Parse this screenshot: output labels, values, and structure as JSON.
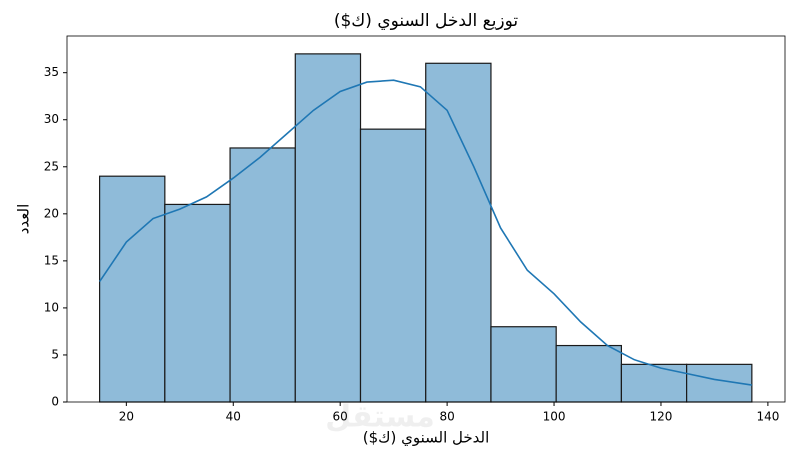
{
  "chart_data": {
    "type": "histogram",
    "title": "توزيع الدخل السنوي (ك$)",
    "x_label": "الدخل السنوي (ك$)",
    "y_label": "العدد",
    "watermark": "مستقل",
    "bins": [
      15,
      27.2,
      39.4,
      51.6,
      63.8,
      76,
      88.2,
      100.4,
      112.6,
      124.8,
      137
    ],
    "values": [
      24,
      21,
      27,
      37,
      29,
      36,
      8,
      6,
      4,
      4
    ],
    "color": "#8fbbd9",
    "edge_color": "#1a1a1a",
    "kde": {
      "color": "#1f77b4",
      "x": [
        15,
        20,
        25,
        30,
        35,
        40,
        45,
        50,
        55,
        60,
        65,
        70,
        75,
        80,
        85,
        90,
        95,
        100,
        105,
        110,
        115,
        120,
        125,
        130,
        137
      ],
      "values": [
        12.8,
        17,
        19.5,
        20.5,
        21.8,
        23.8,
        26,
        28.5,
        31,
        33,
        34,
        34.2,
        33.5,
        31,
        25,
        18.5,
        14,
        11.5,
        8.5,
        6,
        4.5,
        3.6,
        3,
        2.4,
        1.8
      ]
    },
    "xlim": [
      8.9,
      143.2
    ],
    "ylim": [
      0,
      38.9
    ],
    "xticks": [
      20,
      40,
      60,
      80,
      100,
      120,
      140
    ],
    "yticks": [
      0,
      5,
      10,
      15,
      20,
      25,
      30,
      35
    ]
  }
}
